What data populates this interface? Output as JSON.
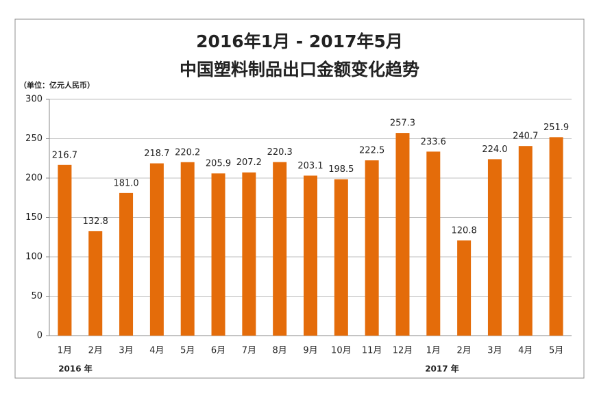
{
  "chart_data": {
    "type": "bar",
    "title": "2016年1月 - 2017年5月",
    "subtitle": "中国塑料制品出口金额变化趋势",
    "y_label": "（单位：亿元人民币）",
    "year_labels": [
      "2016 年",
      "2017 年"
    ],
    "categories": [
      "1月",
      "2月",
      "3月",
      "4月",
      "5月",
      "6月",
      "7月",
      "8月",
      "9月",
      "10月",
      "11月",
      "12月",
      "1月",
      "2月",
      "3月",
      "4月",
      "5月"
    ],
    "values": [
      216.7,
      132.8,
      181.0,
      218.7,
      220.2,
      205.9,
      207.2,
      220.3,
      203.1,
      198.5,
      222.5,
      257.3,
      233.6,
      120.8,
      224.0,
      240.7,
      251.9
    ],
    "value_labels": [
      "216.7",
      "132.8",
      "181.0",
      "218.7",
      "220.2",
      "205.9",
      "207.2",
      "220.3",
      "203.1",
      "198.5",
      "222.5",
      "257.3",
      "233.6",
      "120.8",
      "224.0",
      "240.7",
      "251.9"
    ],
    "color": "#e46c0a",
    "ylim": [
      0,
      300
    ],
    "yticks": [
      0,
      50,
      100,
      150,
      200,
      250,
      300
    ],
    "grid": true
  }
}
